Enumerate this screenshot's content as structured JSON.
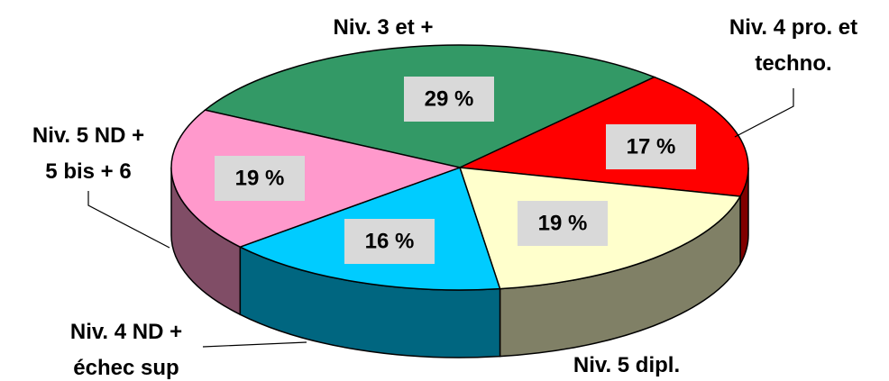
{
  "chart_data": {
    "type": "pie3d",
    "categories": [
      "Niv. 3 et +",
      "Niv. 4 pro. et\ntechno.",
      "Niv. 5 dipl.",
      "Niv. 4 ND +\néchec sup",
      "Niv. 5 ND +\n5 bis + 6"
    ],
    "values": [
      29,
      17,
      19,
      16,
      19
    ],
    "value_labels": [
      "29 %",
      "17 %",
      "19 %",
      "16 %",
      "19 %"
    ],
    "colors": [
      "#339966",
      "#ff0000",
      "#ffffcc",
      "#00ccff",
      "#ff99cc"
    ]
  }
}
